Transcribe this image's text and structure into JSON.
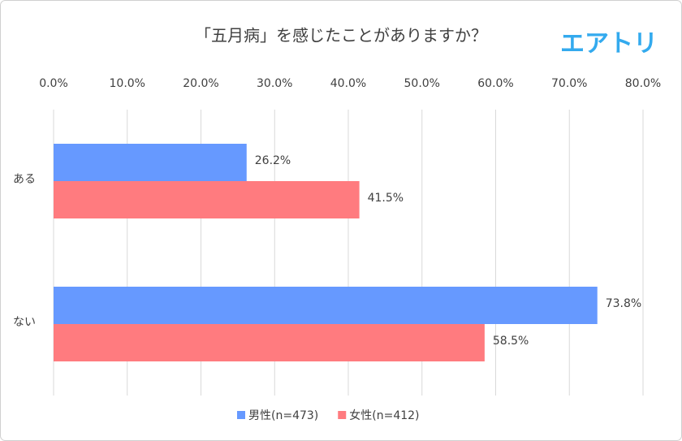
{
  "chart_data": {
    "type": "bar",
    "orientation": "horizontal",
    "title": "「五月病」を感じたことがありますか？",
    "logo": "エアトリ",
    "categories": [
      "ある",
      "ない"
    ],
    "series": [
      {
        "name": "男性(n=473)",
        "color": "#6699ff",
        "values": [
          26.2,
          73.8
        ],
        "value_labels": [
          "26.2%",
          "73.8%"
        ]
      },
      {
        "name": "女性(n=412)",
        "color": "#ff7b7f",
        "values": [
          41.5,
          58.5
        ],
        "value_labels": [
          "41.5%",
          "58.5%"
        ]
      }
    ],
    "xlim": [
      0,
      80
    ],
    "xticks": [
      {
        "value": 0,
        "label": "0.0%"
      },
      {
        "value": 10,
        "label": "10.0%"
      },
      {
        "value": 20,
        "label": "20.0%"
      },
      {
        "value": 30,
        "label": "30.0%"
      },
      {
        "value": 40,
        "label": "40.0%"
      },
      {
        "value": 50,
        "label": "50.0%"
      },
      {
        "value": 60,
        "label": "60.0%"
      },
      {
        "value": 70,
        "label": "70.0%"
      },
      {
        "value": 80,
        "label": "80.0%"
      }
    ],
    "grid": true,
    "legend": "bottom"
  }
}
